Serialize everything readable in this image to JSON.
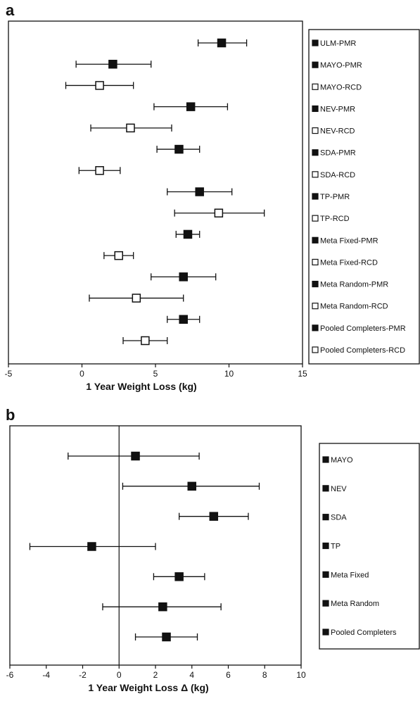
{
  "chart_data": [
    {
      "panel": "a",
      "type": "forest",
      "xlabel": "1 Year Weight Loss (kg)",
      "xlim": [
        -5,
        15
      ],
      "xticks": [
        -5,
        0,
        5,
        10,
        15
      ],
      "grid": false,
      "legend_position": "right",
      "series": [
        {
          "name": "ULM-PMR",
          "marker": "filled",
          "mean": 9.5,
          "lo": 7.9,
          "hi": 11.2
        },
        {
          "name": "MAYO-PMR",
          "marker": "filled",
          "mean": 2.1,
          "lo": -0.4,
          "hi": 4.7
        },
        {
          "name": "MAYO-RCD",
          "marker": "open",
          "mean": 1.2,
          "lo": -1.1,
          "hi": 3.5
        },
        {
          "name": "NEV-PMR",
          "marker": "filled",
          "mean": 7.4,
          "lo": 4.9,
          "hi": 9.9
        },
        {
          "name": "NEV-RCD",
          "marker": "open",
          "mean": 3.3,
          "lo": 0.6,
          "hi": 6.1
        },
        {
          "name": "SDA-PMR",
          "marker": "filled",
          "mean": 6.6,
          "lo": 5.1,
          "hi": 8.0
        },
        {
          "name": "SDA-RCD",
          "marker": "open",
          "mean": 1.2,
          "lo": -0.2,
          "hi": 2.6
        },
        {
          "name": "TP-PMR",
          "marker": "filled",
          "mean": 8.0,
          "lo": 5.8,
          "hi": 10.2
        },
        {
          "name": "TP-RCD",
          "marker": "open",
          "mean": 9.3,
          "lo": 6.3,
          "hi": 12.4
        },
        {
          "name": "Meta Fixed-PMR",
          "marker": "filled",
          "mean": 7.2,
          "lo": 6.4,
          "hi": 8.0
        },
        {
          "name": "Meta Fixed-RCD",
          "marker": "open",
          "mean": 2.5,
          "lo": 1.5,
          "hi": 3.5
        },
        {
          "name": "Meta Random-PMR",
          "marker": "filled",
          "mean": 6.9,
          "lo": 4.7,
          "hi": 9.1
        },
        {
          "name": "Meta Random-RCD",
          "marker": "open",
          "mean": 3.7,
          "lo": 0.5,
          "hi": 6.9
        },
        {
          "name": "Pooled Completers-PMR",
          "marker": "filled",
          "mean": 6.9,
          "lo": 5.8,
          "hi": 8.0
        },
        {
          "name": "Pooled Completers-RCD",
          "marker": "open",
          "mean": 4.3,
          "lo": 2.8,
          "hi": 5.8
        }
      ]
    },
    {
      "panel": "b",
      "type": "forest",
      "xlabel": "1 Year Weight Loss Δ (kg)",
      "xlim": [
        -6,
        10
      ],
      "xticks": [
        -6,
        -4,
        -2,
        0,
        2,
        4,
        6,
        8,
        10
      ],
      "reference_line": 0,
      "grid": false,
      "legend_position": "right",
      "series": [
        {
          "name": "MAYO",
          "marker": "filled",
          "mean": 0.9,
          "lo": -2.8,
          "hi": 4.4
        },
        {
          "name": "NEV",
          "marker": "filled",
          "mean": 4.0,
          "lo": 0.2,
          "hi": 7.7
        },
        {
          "name": "SDA",
          "marker": "filled",
          "mean": 5.2,
          "lo": 3.3,
          "hi": 7.1
        },
        {
          "name": "TP",
          "marker": "filled",
          "mean": -1.5,
          "lo": -4.9,
          "hi": 2.0
        },
        {
          "name": "Meta Fixed",
          "marker": "filled",
          "mean": 3.3,
          "lo": 1.9,
          "hi": 4.7
        },
        {
          "name": "Meta Random",
          "marker": "filled",
          "mean": 2.4,
          "lo": -0.9,
          "hi": 5.6
        },
        {
          "name": "Pooled Completers",
          "marker": "filled",
          "mean": 2.6,
          "lo": 0.9,
          "hi": 4.3
        }
      ]
    }
  ]
}
